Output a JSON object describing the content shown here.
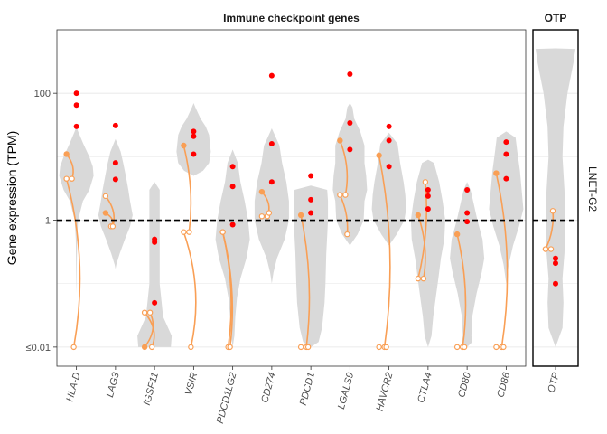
{
  "chart_data": {
    "type": "violin",
    "ylabel": "Gene expression (TPM)",
    "y_scale": "log10",
    "y_ticks": [
      {
        "value": 100,
        "label": "100"
      },
      {
        "value": 1,
        "label": "1"
      },
      {
        "value": 0.01,
        "label": "≤0.01"
      }
    ],
    "ylim": [
      0.005,
      1000
    ],
    "reference_line": 1,
    "colors": {
      "violin": "#d9d9d9",
      "point": "#ff0000",
      "line": "#f99f55",
      "dashed": "#000000",
      "grid": "#ebebeb"
    },
    "panels": [
      {
        "title": "Immune checkpoint genes",
        "genes": [
          {
            "name": "HLA-D",
            "violin": [
              [
                0.07,
                0.0
              ],
              [
                0.1,
                0.01
              ],
              [
                0.2,
                0.02
              ],
              [
                0.5,
                0.04
              ],
              [
                1,
                0.1
              ],
              [
                2,
                0.38
              ],
              [
                3,
                0.75
              ],
              [
                5,
                1.0
              ],
              [
                7,
                0.95
              ],
              [
                10,
                0.75
              ],
              [
                16,
                0.4
              ],
              [
                25,
                0.1
              ],
              [
                30,
                0.0
              ]
            ],
            "red": [
              100,
              65,
              30
            ],
            "pairs": [
              {
                "a": 11,
                "b": 4.5,
                "curve": 0.13
              },
              {
                "a": 4.5,
                "b": 0.01,
                "curve": 0.35
              }
            ]
          },
          {
            "name": "LAG3",
            "violin": [
              [
                0.17,
                0.0
              ],
              [
                0.2,
                0.05
              ],
              [
                0.3,
                0.25
              ],
              [
                0.5,
                0.55
              ],
              [
                0.8,
                0.85
              ],
              [
                1.2,
                1.0
              ],
              [
                2,
                0.85
              ],
              [
                3,
                0.75
              ],
              [
                5,
                0.6
              ],
              [
                8,
                0.45
              ],
              [
                12,
                0.3
              ],
              [
                19,
                0.0
              ]
            ],
            "red": [
              31,
              8,
              4.4
            ],
            "pairs": [
              {
                "a": 1.3,
                "b": 0.8,
                "curve": 0.15
              },
              {
                "a": 2.4,
                "b": 0.8,
                "curve": 0.15
              }
            ]
          },
          {
            "name": "IGSF11",
            "violin": [
              [
                0.01,
                0.0
              ],
              [
                0.01,
                0.95
              ],
              [
                0.015,
                1.0
              ],
              [
                0.03,
                0.5
              ],
              [
                0.1,
                0.3
              ],
              [
                0.3,
                0.3
              ],
              [
                1,
                0.3
              ],
              [
                3,
                0.3
              ],
              [
                4,
                0.0
              ]
            ],
            "red": [
              0.5,
              0.45,
              0.05
            ],
            "pairs": [
              {
                "a": 0.01,
                "b": 0.035,
                "curve": 0.2
              },
              {
                "a": 0.035,
                "b": 0.01,
                "curve": 0.2
              }
            ]
          },
          {
            "name": "VSIR",
            "violin": [
              [
                5,
                0.0
              ],
              [
                6,
                0.55
              ],
              [
                8,
                0.9
              ],
              [
                12,
                1.0
              ],
              [
                16,
                0.95
              ],
              [
                22,
                0.9
              ],
              [
                30,
                0.7
              ],
              [
                40,
                0.4
              ],
              [
                60,
                0.1
              ],
              [
                70,
                0.0
              ]
            ],
            "red": [
              25,
              21,
              11
            ],
            "pairs": [
              {
                "a": 15,
                "b": 0.65,
                "curve": 0.15
              },
              {
                "a": 0.65,
                "b": 0.01,
                "curve": 0.3
              }
            ]
          },
          {
            "name": "PDCD1LG2",
            "violin": [
              [
                0.01,
                0.0
              ],
              [
                0.015,
                0.1
              ],
              [
                0.03,
                0.15
              ],
              [
                0.06,
                0.25
              ],
              [
                0.12,
                0.45
              ],
              [
                0.25,
                0.8
              ],
              [
                0.5,
                1.0
              ],
              [
                1,
                0.9
              ],
              [
                2,
                0.7
              ],
              [
                4,
                0.45
              ],
              [
                8,
                0.3
              ],
              [
                13,
                0.0
              ]
            ],
            "red": [
              7,
              3.4,
              0.85
            ],
            "pairs": [
              {
                "a": 0.65,
                "b": 0.01,
                "curve": 0.2
              },
              {
                "a": 0.65,
                "b": 0.01,
                "curve": 0.2
              }
            ]
          },
          {
            "name": "CD274",
            "violin": [
              [
                0.1,
                0.0
              ],
              [
                0.15,
                0.1
              ],
              [
                0.25,
                0.3
              ],
              [
                0.5,
                0.75
              ],
              [
                1,
                1.0
              ],
              [
                2,
                1.0
              ],
              [
                4,
                0.85
              ],
              [
                8,
                0.6
              ],
              [
                15,
                0.45
              ],
              [
                28,
                0.0
              ]
            ],
            "red": [
              190,
              16,
              4
            ],
            "pairs": [
              {
                "a": 2.8,
                "b": 1.15,
                "curve": 0.15
              },
              {
                "a": 1.15,
                "b": 1.3,
                "curve": 0.1
              }
            ]
          },
          {
            "name": "PDCD1",
            "violin": [
              [
                0.01,
                0.0
              ],
              [
                0.012,
                0.45
              ],
              [
                0.02,
                0.65
              ],
              [
                0.05,
                0.8
              ],
              [
                0.1,
                0.85
              ],
              [
                0.3,
                0.9
              ],
              [
                1,
                1.0
              ],
              [
                2,
                1.0
              ],
              [
                3,
                0.95
              ],
              [
                3.5,
                0.0
              ]
            ],
            "red": [
              5,
              2.1,
              1.3
            ],
            "pairs": [
              {
                "a": 1.2,
                "b": 0.01,
                "curve": 0.2
              },
              {
                "a": 0.01,
                "b": 0.01,
                "curve": 0.1
              }
            ]
          },
          {
            "name": "LGALS9",
            "violin": [
              [
                0.4,
                0.0
              ],
              [
                0.6,
                0.45
              ],
              [
                1,
                0.8
              ],
              [
                2,
                0.85
              ],
              [
                3,
                1.0
              ],
              [
                5,
                0.95
              ],
              [
                8,
                0.85
              ],
              [
                15,
                0.85
              ],
              [
                25,
                0.6
              ],
              [
                40,
                0.25
              ],
              [
                60,
                0.15
              ],
              [
                70,
                0.0
              ]
            ],
            "red": [
              200,
              34,
              13
            ],
            "pairs": [
              {
                "a": 18,
                "b": 2.5,
                "curve": 0.15
              },
              {
                "a": 2.5,
                "b": 0.6,
                "curve": 0.1
              }
            ]
          },
          {
            "name": "HAVCR2",
            "violin": [
              [
                0.4,
                0.0
              ],
              [
                0.6,
                0.45
              ],
              [
                1,
                0.9
              ],
              [
                1.5,
                1.0
              ],
              [
                2.5,
                0.95
              ],
              [
                4,
                0.85
              ],
              [
                8,
                0.65
              ],
              [
                16,
                0.5
              ],
              [
                24,
                0.0
              ]
            ],
            "red": [
              30,
              18,
              7
            ],
            "pairs": [
              {
                "a": 10.5,
                "b": 0.01,
                "curve": 0.3
              },
              {
                "a": 0.01,
                "b": 0.01,
                "curve": 0.1
              }
            ]
          },
          {
            "name": "CTLA4",
            "violin": [
              [
                0.01,
                0.0
              ],
              [
                0.015,
                0.2
              ],
              [
                0.03,
                0.3
              ],
              [
                0.06,
                0.45
              ],
              [
                0.12,
                0.6
              ],
              [
                0.25,
                0.75
              ],
              [
                0.5,
                0.95
              ],
              [
                1,
                1.0
              ],
              [
                2,
                0.85
              ],
              [
                4,
                0.65
              ],
              [
                8,
                0.35
              ],
              [
                9,
                0.0
              ]
            ],
            "red": [
              3,
              2.4,
              1.5
            ],
            "pairs": [
              {
                "a": 1.2,
                "b": 0.12,
                "curve": 0.15
              },
              {
                "a": 0.12,
                "b": 4,
                "curve": 0.15
              }
            ]
          },
          {
            "name": "CD80",
            "violin": [
              [
                0.01,
                0.0
              ],
              [
                0.012,
                0.3
              ],
              [
                0.015,
                0.25
              ],
              [
                0.03,
                0.3
              ],
              [
                0.07,
                0.55
              ],
              [
                0.15,
                0.85
              ],
              [
                0.25,
                1.0
              ],
              [
                0.5,
                0.9
              ],
              [
                1,
                0.6
              ],
              [
                2,
                0.35
              ],
              [
                3,
                0.2
              ],
              [
                4,
                0.0
              ]
            ],
            "red": [
              3,
              1.3,
              0.95
            ],
            "pairs": [
              {
                "a": 0.6,
                "b": 0.01,
                "curve": 0.2
              },
              {
                "a": 0.01,
                "b": 0.01,
                "curve": 0.1
              }
            ]
          },
          {
            "name": "CD86",
            "violin": [
              [
                0.1,
                0.0
              ],
              [
                0.2,
                0.15
              ],
              [
                0.4,
                0.4
              ],
              [
                0.8,
                0.75
              ],
              [
                1.5,
                1.0
              ],
              [
                3,
                0.9
              ],
              [
                6,
                0.8
              ],
              [
                12,
                0.65
              ],
              [
                20,
                0.55
              ],
              [
                25,
                0.0
              ]
            ],
            "red": [
              17,
              11,
              4.5
            ],
            "pairs": [
              {
                "a": 5.5,
                "b": 0.01,
                "curve": 0.3
              },
              {
                "a": 0.01,
                "b": 0.01,
                "curve": 0.1
              }
            ]
          }
        ]
      },
      {
        "title": "OTP",
        "side_label": "LNET-G2",
        "genes": [
          {
            "name": "OTP",
            "violin": [
              [
                0.01,
                0.0
              ],
              [
                0.02,
                0.35
              ],
              [
                0.05,
                0.4
              ],
              [
                0.12,
                0.35
              ],
              [
                0.3,
                0.45
              ],
              [
                1,
                0.5
              ],
              [
                3,
                0.45
              ],
              [
                10,
                0.35
              ],
              [
                30,
                0.4
              ],
              [
                100,
                0.6
              ],
              [
                300,
                0.9
              ],
              [
                500,
                1.0
              ],
              [
                510,
                0.0
              ]
            ],
            "red": [
              0.25,
              0.21,
              0.1
            ],
            "pairs": [
              {
                "a": 0.35,
                "b": 0.35,
                "curve": 0.1
              },
              {
                "a": 0.35,
                "b": 1.4,
                "curve": 0.1
              }
            ]
          }
        ]
      }
    ]
  }
}
